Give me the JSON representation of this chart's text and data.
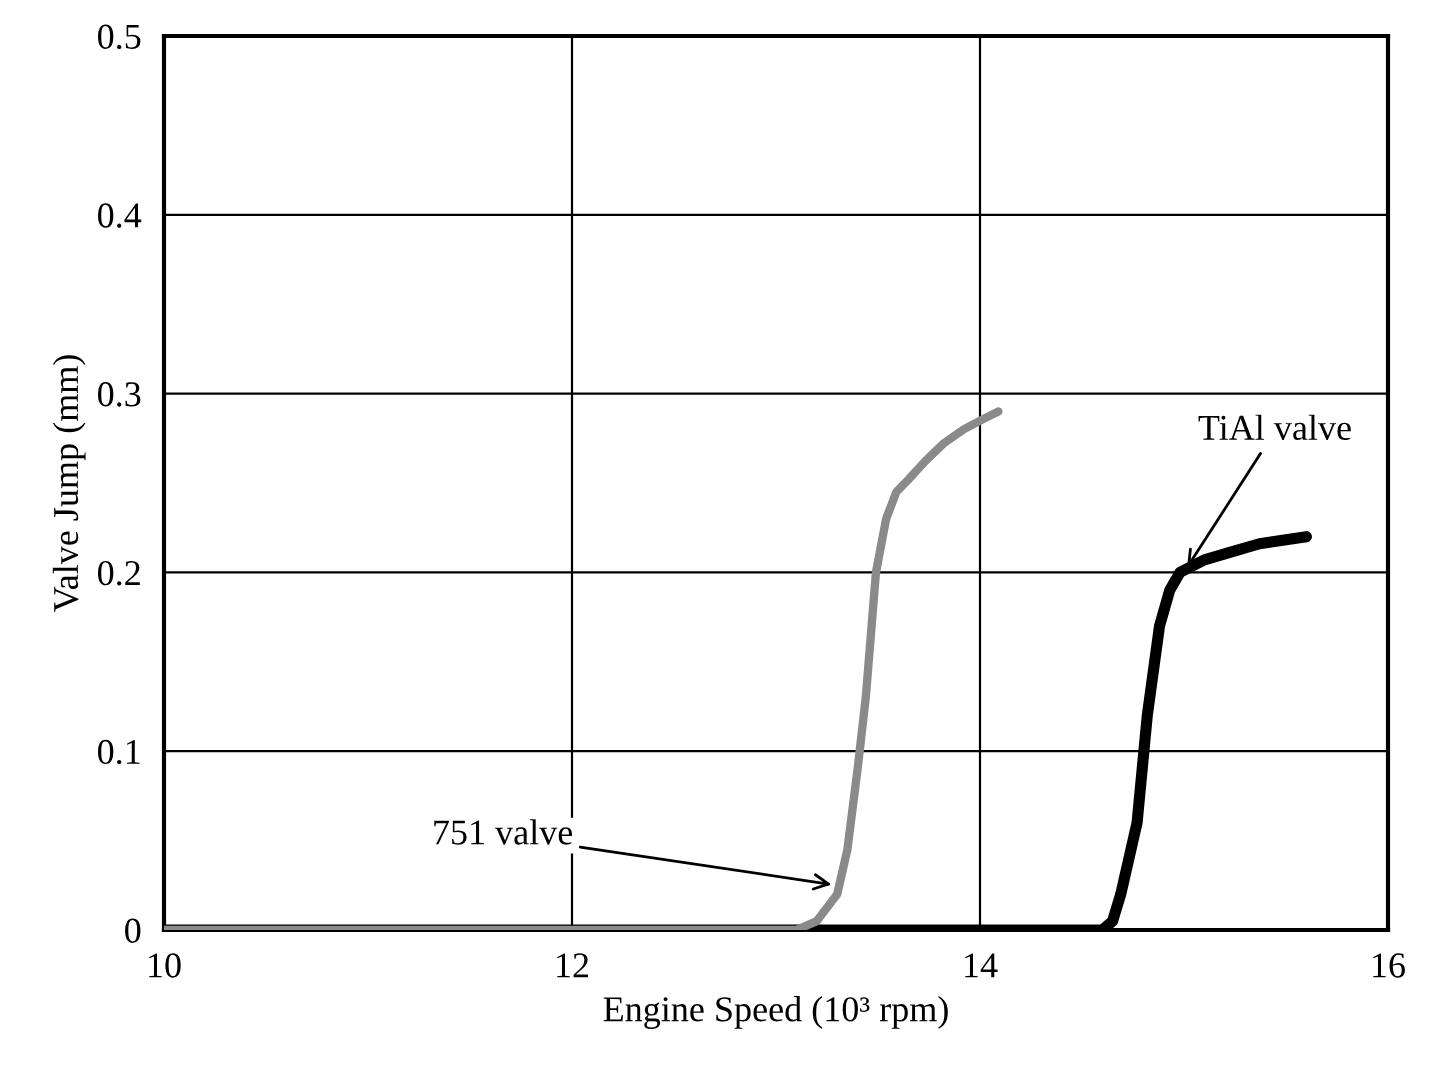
{
  "chart_data": {
    "type": "line",
    "xlabel": "Engine Speed (10³ rpm)",
    "ylabel": "Valve Jump (mm)",
    "xlim": [
      10,
      16
    ],
    "xticks": [
      10,
      12,
      14,
      16
    ],
    "ylim": [
      0,
      0.5
    ],
    "yticks": [
      0,
      0.1,
      0.2,
      0.3,
      0.4,
      0.5
    ],
    "grid": true,
    "legend": false,
    "marker": "none",
    "line_style": "solid",
    "series": [
      {
        "color": "#8a8a8a",
        "x": [
          10,
          13.1,
          13.2,
          13.3,
          13.35,
          13.4,
          13.44,
          13.49,
          13.54,
          13.59,
          13.65,
          13.73,
          13.82,
          13.92,
          14.02,
          14.09
        ],
        "values": [
          0,
          0,
          0.005,
          0.02,
          0.045,
          0.09,
          0.13,
          0.2,
          0.23,
          0.245,
          0.252,
          0.262,
          0.272,
          0.28,
          0.286,
          0.29
        ]
      },
      {
        "color": "#000000",
        "x": [
          10,
          14.6,
          14.65,
          14.69,
          14.73,
          14.77,
          14.82,
          14.88,
          14.93,
          14.98,
          15.1,
          15.25,
          15.37,
          15.6
        ],
        "values": [
          0,
          0,
          0.005,
          0.02,
          0.04,
          0.06,
          0.12,
          0.17,
          0.19,
          0.2,
          0.207,
          0.212,
          0.216,
          0.22
        ]
      }
    ],
    "annotations": [
      {
        "text": "751 valve",
        "x": 13.3,
        "y": 0.025
      },
      {
        "text": "TiAl valve",
        "x": 15.0,
        "y": 0.2
      }
    ]
  }
}
